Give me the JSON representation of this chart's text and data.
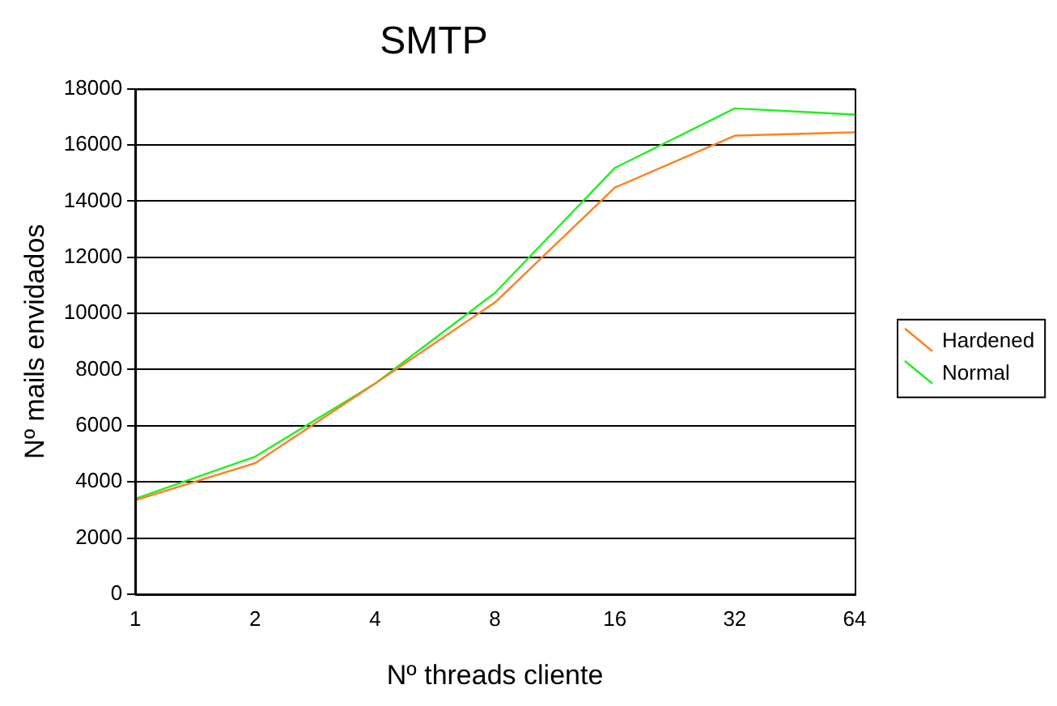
{
  "chart_data": {
    "type": "line",
    "title": "SMTP",
    "xlabel": "Nº threads cliente",
    "ylabel": "Nº mails envidados",
    "categories": [
      "1",
      "2",
      "4",
      "8",
      "16",
      "32",
      "64"
    ],
    "series": [
      {
        "name": "Hardened",
        "color": "#ff8020",
        "values": [
          3350,
          4670,
          7500,
          10390,
          14480,
          16330,
          16450
        ]
      },
      {
        "name": "Normal",
        "color": "#20f020",
        "values": [
          3400,
          4900,
          7500,
          10730,
          15180,
          17300,
          17080
        ]
      }
    ],
    "ylim": [
      0,
      18000
    ],
    "yticks": [
      0,
      2000,
      4000,
      6000,
      8000,
      10000,
      12000,
      14000,
      16000,
      18000
    ],
    "grid": "y",
    "legend": "right",
    "marker": "none"
  }
}
